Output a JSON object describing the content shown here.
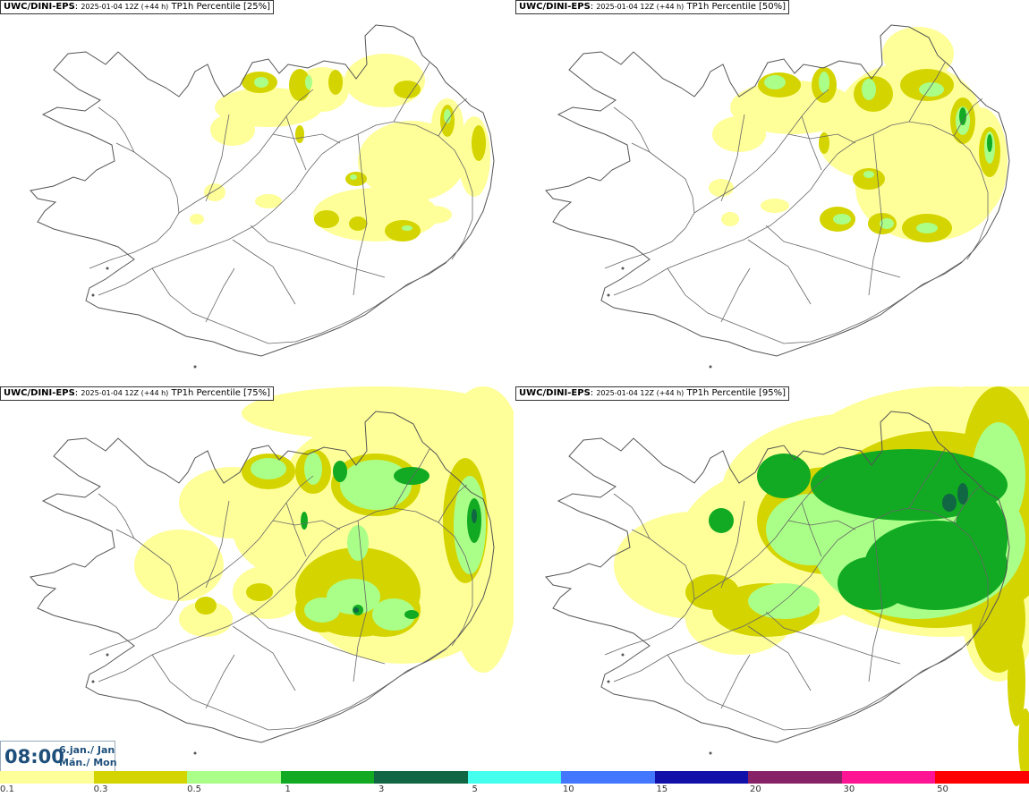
{
  "panels": [
    {
      "model": "UWC/DINI-EPS",
      "run": "2025-01-04 12Z (+44 h)",
      "field": "TP1h Percentile [25%]",
      "percentile": 25
    },
    {
      "model": "UWC/DINI-EPS",
      "run": "2025-01-04 12Z (+44 h)",
      "field": "TP1h Percentile [50%]",
      "percentile": 50
    },
    {
      "model": "UWC/DINI-EPS",
      "run": "2025-01-04 12Z (+44 h)",
      "field": "TP1h Percentile [75%]",
      "percentile": 75
    },
    {
      "model": "UWC/DINI-EPS",
      "run": "2025-01-04 12Z (+44 h)",
      "field": "TP1h Percentile [95%]",
      "percentile": 95
    }
  ],
  "valid_time": {
    "time": "08:00",
    "date_line1": "6.jan./ Jan",
    "date_line2": "Mán./ Mon"
  },
  "legend": {
    "ticks": [
      "0.1",
      "0.3",
      "0.5",
      "1",
      "3",
      "5",
      "10",
      "15",
      "20",
      "30",
      "50"
    ],
    "colors": [
      "#ffff99",
      "#d4d400",
      "#aaff88",
      "#11aa22",
      "#116644",
      "#44ffee",
      "#4477ff",
      "#1111aa",
      "#882266",
      "#ff1493",
      "#ff0000"
    ]
  }
}
